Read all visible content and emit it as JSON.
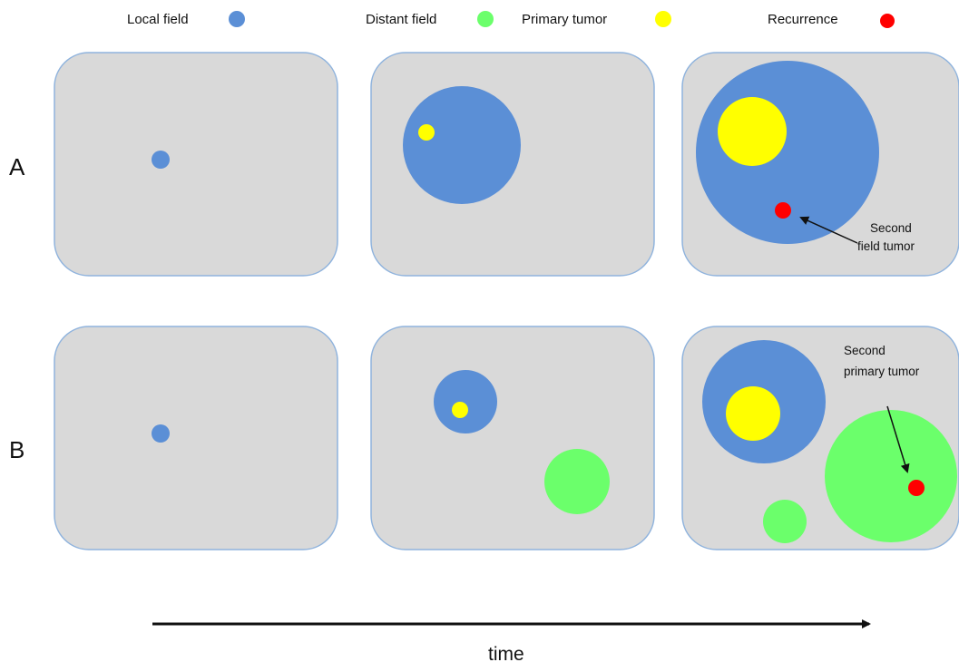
{
  "colors": {
    "local_field": "#5b8fd6",
    "distant_field": "#6bff6b",
    "primary_tumor": "#ffff00",
    "recurrence": "#ff0000",
    "panel": "#d9d9d9"
  },
  "legend": {
    "local_field": "Local field",
    "distant_field": "Distant field",
    "primary_tumor": "Primary tumor",
    "recurrence": "Recurrence"
  },
  "rows": {
    "a": "A",
    "b": "B"
  },
  "annotations": {
    "second_field_tumor": [
      "Second",
      "field tumor"
    ],
    "second_primary_tumor": [
      "Second",
      "primary tumor"
    ]
  },
  "axis": {
    "time": "time"
  }
}
